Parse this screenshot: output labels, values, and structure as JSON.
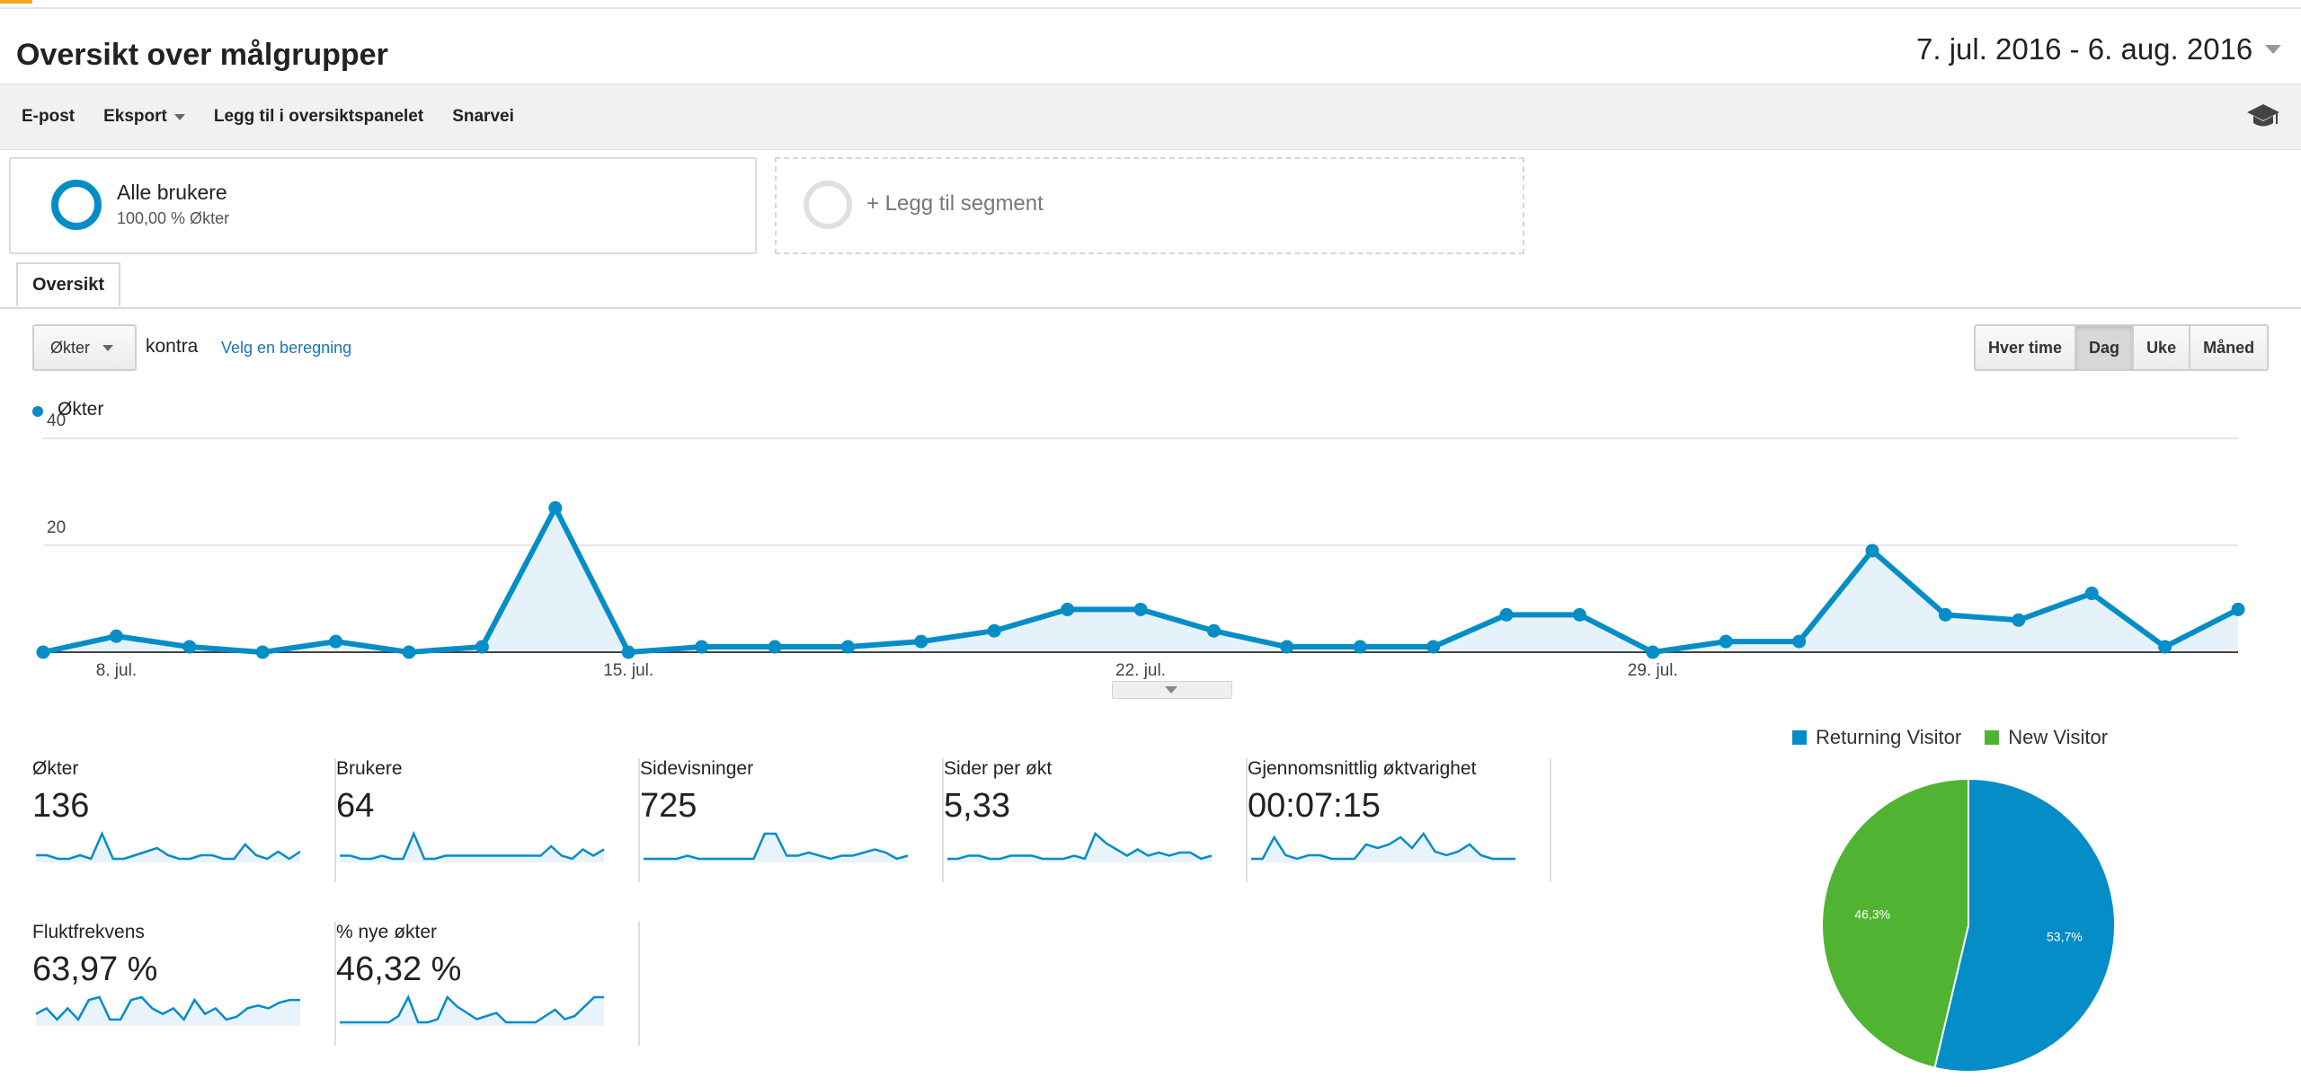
{
  "header": {
    "title": "Oversikt over målgrupper",
    "date_range": "7. jul. 2016 - 6. aug. 2016"
  },
  "toolbar": {
    "email": "E-post",
    "export": "Eksport",
    "add_dashboard": "Legg til i oversiktspanelet",
    "shortcut": "Snarvei"
  },
  "segments": {
    "all_users": {
      "title": "Alle brukere",
      "subtitle": "100,00 % Økter"
    },
    "add_segment": "+ Legg til segment"
  },
  "tabs": [
    "Oversikt"
  ],
  "controls": {
    "metric": "Økter",
    "versus": "kontra",
    "choose_metric": "Velg en beregning",
    "granularity": [
      "Hver time",
      "Dag",
      "Uke",
      "Måned"
    ],
    "active_granularity": "Dag"
  },
  "colors": {
    "accent": "#058dc7",
    "returning": "#058dc7",
    "new": "#50b432"
  },
  "chart_data": [
    {
      "type": "area",
      "series": [
        {
          "name": "Økter",
          "values": [
            0,
            3,
            1,
            0,
            2,
            0,
            1,
            27,
            0,
            1,
            1,
            1,
            2,
            4,
            8,
            8,
            4,
            1,
            1,
            1,
            7,
            7,
            0,
            2,
            2,
            19,
            7,
            6,
            11,
            1,
            8
          ]
        }
      ],
      "x_tick_labels": [
        "8. jul.",
        "15. jul.",
        "22. jul.",
        "29. jul."
      ],
      "y_tick_labels": [
        "40",
        "20"
      ],
      "ylim": [
        0,
        40
      ],
      "grid": true
    },
    {
      "type": "pie",
      "categories": [
        "Returning Visitor",
        "New Visitor"
      ],
      "values": [
        53.7,
        46.3
      ],
      "labels": [
        "53,7%",
        "46,3%"
      ],
      "legend": "top"
    }
  ],
  "cards": [
    {
      "label": "Økter",
      "value": "136",
      "spark": [
        1,
        1,
        0,
        0,
        1,
        0,
        7,
        0,
        0,
        1,
        2,
        3,
        1,
        0,
        0,
        1,
        1,
        0,
        0,
        4,
        1,
        0,
        2,
        0,
        2
      ]
    },
    {
      "label": "Brukere",
      "value": "64",
      "spark": [
        1,
        1,
        0,
        0,
        1,
        0,
        0,
        8,
        0,
        0,
        1,
        1,
        1,
        1,
        1,
        1,
        1,
        1,
        1,
        1,
        4,
        1,
        0,
        3,
        1,
        3
      ]
    },
    {
      "label": "Sidevisninger",
      "value": "725",
      "spark": [
        0,
        0,
        0,
        0,
        1,
        0,
        0,
        0,
        0,
        0,
        0,
        8,
        8,
        1,
        1,
        2,
        1,
        0,
        1,
        1,
        2,
        3,
        2,
        0,
        1
      ]
    },
    {
      "label": "Sider per økt",
      "value": "5,33",
      "spark": [
        0,
        0,
        1,
        1,
        0,
        0,
        1,
        1,
        1,
        0,
        0,
        0,
        1,
        0,
        8,
        5,
        3,
        1,
        3,
        1,
        2,
        1,
        2,
        2,
        0,
        1
      ]
    },
    {
      "label": "Gjennomsnittlig øktvarighet",
      "value": "00:07:15",
      "spark": [
        0,
        0,
        6,
        1,
        0,
        1,
        1,
        0,
        0,
        0,
        4,
        3,
        4,
        6,
        3,
        7,
        2,
        1,
        2,
        4,
        1,
        0,
        0,
        0
      ]
    },
    {
      "label": "Fluktfrekvens",
      "value": "63,97 %",
      "spark": [
        3,
        5,
        1,
        5,
        1,
        8,
        9,
        1,
        1,
        8,
        9,
        5,
        3,
        5,
        1,
        8,
        3,
        5,
        1,
        2,
        5,
        6,
        5,
        7,
        8,
        8
      ]
    },
    {
      "label": "% nye økter",
      "value": "46,32 %",
      "spark": [
        0,
        0,
        0,
        0,
        0,
        0,
        2,
        8,
        0,
        0,
        1,
        8,
        5,
        3,
        1,
        2,
        3,
        0,
        0,
        0,
        0,
        2,
        4,
        1,
        2,
        5,
        8,
        8
      ]
    }
  ]
}
